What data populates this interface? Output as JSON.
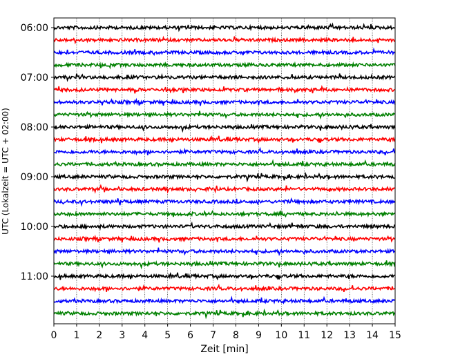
{
  "chart_data": {
    "type": "line",
    "title": "",
    "xlabel": "Zeit  [min]",
    "ylabel": "UTC (Lokalzeit = UTC + 02:00)",
    "xlim": [
      0,
      15
    ],
    "x_ticks": [
      0,
      1,
      2,
      3,
      4,
      5,
      6,
      7,
      8,
      9,
      10,
      11,
      12,
      13,
      14,
      15
    ],
    "x_tick_labels": [
      "0",
      "1",
      "2",
      "3",
      "4",
      "5",
      "6",
      "7",
      "8",
      "9",
      "10",
      "11",
      "12",
      "13",
      "14",
      "15"
    ],
    "y_tick_labels": [
      "06:00",
      "07:00",
      "08:00",
      "09:00",
      "10:00",
      "11:00"
    ],
    "trace_colors": [
      "#000000",
      "#ff0000",
      "#0000ff",
      "#008000"
    ],
    "grid": "vertical dotted lines at each minute",
    "legend": "none",
    "series": [
      {
        "start": "06:00",
        "color": "#000000"
      },
      {
        "start": "06:15",
        "color": "#ff0000"
      },
      {
        "start": "06:30",
        "color": "#0000ff"
      },
      {
        "start": "06:45",
        "color": "#008000"
      },
      {
        "start": "07:00",
        "color": "#000000"
      },
      {
        "start": "07:15",
        "color": "#ff0000"
      },
      {
        "start": "07:30",
        "color": "#0000ff"
      },
      {
        "start": "07:45",
        "color": "#008000"
      },
      {
        "start": "08:00",
        "color": "#000000"
      },
      {
        "start": "08:15",
        "color": "#ff0000"
      },
      {
        "start": "08:30",
        "color": "#0000ff"
      },
      {
        "start": "08:45",
        "color": "#008000"
      },
      {
        "start": "09:00",
        "color": "#000000"
      },
      {
        "start": "09:15",
        "color": "#ff0000"
      },
      {
        "start": "09:30",
        "color": "#0000ff"
      },
      {
        "start": "09:45",
        "color": "#008000"
      },
      {
        "start": "10:00",
        "color": "#000000"
      },
      {
        "start": "10:15",
        "color": "#ff0000"
      },
      {
        "start": "10:30",
        "color": "#0000ff"
      },
      {
        "start": "10:45",
        "color": "#008000"
      },
      {
        "start": "11:00",
        "color": "#000000"
      },
      {
        "start": "11:15",
        "color": "#ff0000"
      },
      {
        "start": "11:30",
        "color": "#0000ff"
      },
      {
        "start": "11:45",
        "color": "#008000"
      }
    ]
  }
}
